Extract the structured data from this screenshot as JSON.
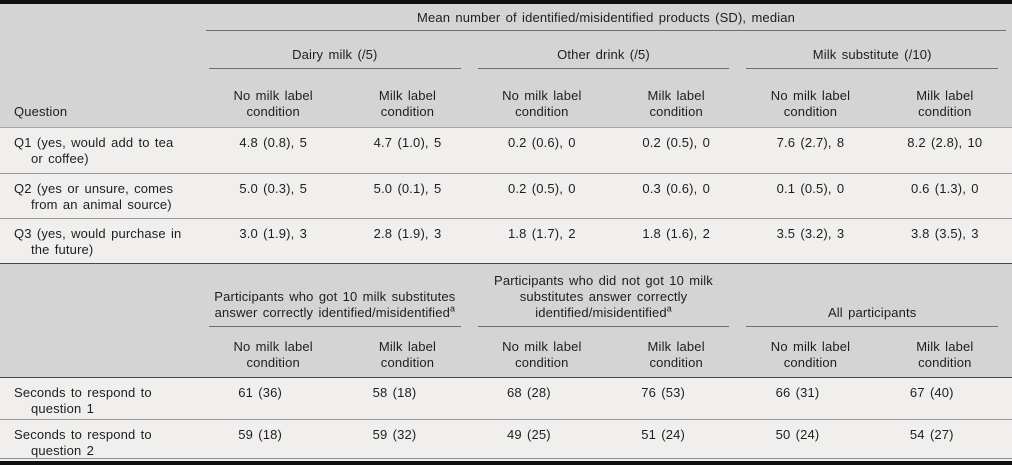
{
  "table": {
    "top_spanner": "Mean number of identified/misidentified products (SD), median",
    "question_col_header": "Question",
    "condition_headers": {
      "no_milk": "No milk label condition",
      "milk": "Milk label condition"
    },
    "section1": {
      "groups": [
        "Dairy milk (/5)",
        "Other drink (/5)",
        "Milk substitute (/10)"
      ],
      "rows": [
        {
          "label": "Q1 (yes, would add to tea or coffee)",
          "values": [
            "4.8 (0.8), 5",
            "4.7 (1.0), 5",
            "0.2 (0.6), 0",
            "0.2 (0.5), 0",
            "7.6 (2.7), 8",
            "8.2 (2.8), 10"
          ]
        },
        {
          "label": "Q2 (yes or unsure, comes from an animal source)",
          "values": [
            "5.0 (0.3), 5",
            "5.0 (0.1), 5",
            "0.2 (0.5), 0",
            "0.3 (0.6), 0",
            "0.1 (0.5), 0",
            "0.6 (1.3), 0"
          ]
        },
        {
          "label": "Q3 (yes, would purchase in the future)",
          "values": [
            "3.0 (1.9), 3",
            "2.8 (1.9), 3",
            "1.8 (1.7), 2",
            "1.8 (1.6), 2",
            "3.5 (3.2), 3",
            "3.8 (3.5), 3"
          ]
        }
      ]
    },
    "section2": {
      "groups": [
        {
          "text": "Participants who got 10 milk substitutes answer correctly identified/misidentified",
          "sup": "a"
        },
        {
          "text": "Participants who did not got 10 milk substitutes answer correctly identified/misidentified",
          "sup": "a"
        },
        {
          "text": "All participants",
          "sup": ""
        }
      ],
      "rows": [
        {
          "label": "Seconds to respond to question 1",
          "values": [
            "61 (36)",
            "58 (18)",
            "68 (28)",
            "76 (53)",
            "66 (31)",
            "67 (40)"
          ]
        },
        {
          "label": "Seconds to respond to question 2",
          "values": [
            "59 (18)",
            "59 (32)",
            "49 (25)",
            "51 (24)",
            "50 (24)",
            "54 (27)"
          ]
        }
      ]
    },
    "colors": {
      "header_bg": "#d4d4d4",
      "body_bg": "#f0efee",
      "frame_bar": "#101010",
      "rule_dark": "#464646",
      "rule_mid": "#6e6e6e",
      "rule_light": "#9a9a9a",
      "text": "#1e1e1e"
    }
  }
}
